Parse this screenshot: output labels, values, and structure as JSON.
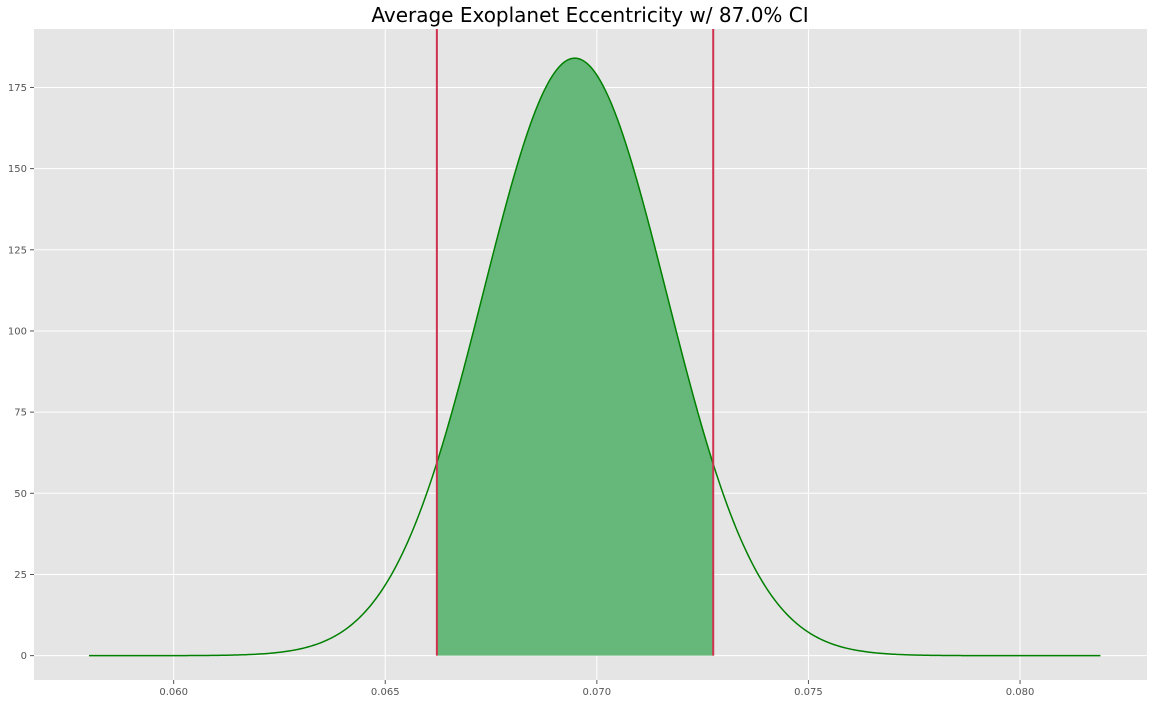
{
  "chart_data": {
    "type": "area",
    "title": "Average Exoplanet Eccentricity w/ 87.0% CI",
    "xlabel": "",
    "ylabel": "",
    "xlim": [
      0.0567,
      0.083
    ],
    "ylim": [
      -7.5,
      193
    ],
    "x_ticks": [
      0.06,
      0.065,
      0.07,
      0.075,
      0.08
    ],
    "x_tick_labels": [
      "0.060",
      "0.065",
      "0.070",
      "0.075",
      "0.080"
    ],
    "y_ticks": [
      0,
      25,
      50,
      75,
      100,
      125,
      150,
      175
    ],
    "y_tick_labels": [
      "0",
      "25",
      "50",
      "75",
      "100",
      "125",
      "150",
      "175"
    ],
    "grid": true,
    "legend": "none",
    "series": [
      {
        "kind": "normal_pdf",
        "mean": 0.06948,
        "std": 0.002168,
        "x_range": [
          0.058,
          0.0819
        ]
      }
    ],
    "confidence_interval": {
      "level": 0.87,
      "lower": 0.06622,
      "upper": 0.07275
    },
    "colors": {
      "background": "#e5e5e5",
      "grid": "#ffffff",
      "curve": "#008000",
      "fill": "#66b77a",
      "ci_lines": "#d0314f"
    }
  }
}
